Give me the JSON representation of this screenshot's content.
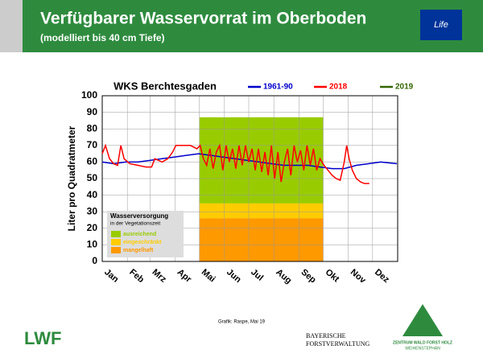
{
  "header": {
    "title": "Verfügbarer Wasservorrat im Oberboden",
    "subtitle": "(modelliert bis 40 cm Tiefe)",
    "logo_text": "Life"
  },
  "chart_data": {
    "type": "line",
    "title": "WKS Berchtesgaden",
    "ylabel": "Liter pro Quadratmeter",
    "xlim": [
      1,
      366
    ],
    "ylim": [
      0,
      100
    ],
    "yticks": [
      0,
      10,
      20,
      30,
      40,
      50,
      60,
      70,
      80,
      90,
      100
    ],
    "grid": true,
    "xticks": [
      {
        "value": 1,
        "label": "Jan"
      },
      {
        "value": 32,
        "label": "Feb"
      },
      {
        "value": 60,
        "label": "Mrz"
      },
      {
        "value": 91,
        "label": "Apr"
      },
      {
        "value": 121,
        "label": "Mai"
      },
      {
        "value": 152,
        "label": "Jun"
      },
      {
        "value": 182,
        "label": "Jul"
      },
      {
        "value": 213,
        "label": "Aug"
      },
      {
        "value": 244,
        "label": "Sep"
      },
      {
        "value": 274,
        "label": "Okt"
      },
      {
        "value": 305,
        "label": "Nov"
      },
      {
        "value": 335,
        "label": "Dez"
      }
    ],
    "zones": {
      "title": "Wasserversorgung",
      "subtitle": "in der Vegetationszeit",
      "from": 121,
      "to": 274,
      "items": [
        {
          "name": "ausreichend",
          "color": "#99cc00",
          "low": 35,
          "high": 87
        },
        {
          "name": "eingeschränkt",
          "color": "#ffcc00",
          "low": 26,
          "high": 35
        },
        {
          "name": "mangelhaft",
          "color": "#ff9900",
          "low": 0,
          "high": 26
        }
      ]
    },
    "series": [
      {
        "name": "1961-90",
        "color": "#0000cc",
        "x": [
          1,
          15,
          30,
          45,
          60,
          75,
          90,
          105,
          120,
          135,
          150,
          165,
          180,
          195,
          210,
          225,
          240,
          255,
          270,
          285,
          300,
          315,
          330,
          345,
          365
        ],
        "values": [
          60,
          59,
          60,
          60,
          61,
          62,
          63,
          64,
          65,
          64,
          63,
          62,
          61,
          60,
          59,
          58,
          58,
          58,
          57,
          56,
          56,
          58,
          59,
          60,
          59
        ]
      },
      {
        "name": "2018",
        "color": "#ff0000",
        "x": [
          1,
          5,
          10,
          15,
          20,
          24,
          28,
          35,
          45,
          55,
          62,
          66,
          75,
          82,
          88,
          92,
          100,
          110,
          118,
          122,
          126,
          130,
          134,
          138,
          142,
          146,
          150,
          154,
          158,
          162,
          166,
          170,
          174,
          178,
          182,
          186,
          190,
          194,
          198,
          202,
          206,
          210,
          214,
          218,
          222,
          226,
          230,
          234,
          238,
          242,
          246,
          250,
          254,
          258,
          262,
          266,
          270,
          275,
          280,
          285,
          290,
          295,
          300,
          303,
          306,
          310,
          315,
          320,
          325,
          331
        ],
        "values": [
          65,
          70,
          62,
          59,
          58,
          70,
          62,
          59,
          58,
          57,
          57,
          62,
          60,
          62,
          66,
          70,
          70,
          70,
          68,
          70,
          62,
          58,
          68,
          56,
          66,
          70,
          55,
          70,
          60,
          68,
          56,
          70,
          58,
          70,
          60,
          68,
          55,
          68,
          54,
          66,
          52,
          70,
          50,
          66,
          48,
          60,
          68,
          52,
          70,
          60,
          67,
          55,
          70,
          58,
          68,
          55,
          62,
          58,
          55,
          52,
          50,
          49,
          60,
          70,
          62,
          55,
          50,
          48,
          47,
          47
        ]
      },
      {
        "name": "2019",
        "color": "#336600",
        "x": [],
        "values": []
      }
    ],
    "credit": "Grafik: Raspe, Mai 19"
  },
  "footer": {
    "left_logo": "LWF",
    "center_logo_1": "BAYERISCHE",
    "center_logo_2": "FORSTVERWALTUNG",
    "right_logo_1": "ZENTRUM WALD FORST HOLZ",
    "right_logo_2": "WEIHENSTEPHAN"
  }
}
